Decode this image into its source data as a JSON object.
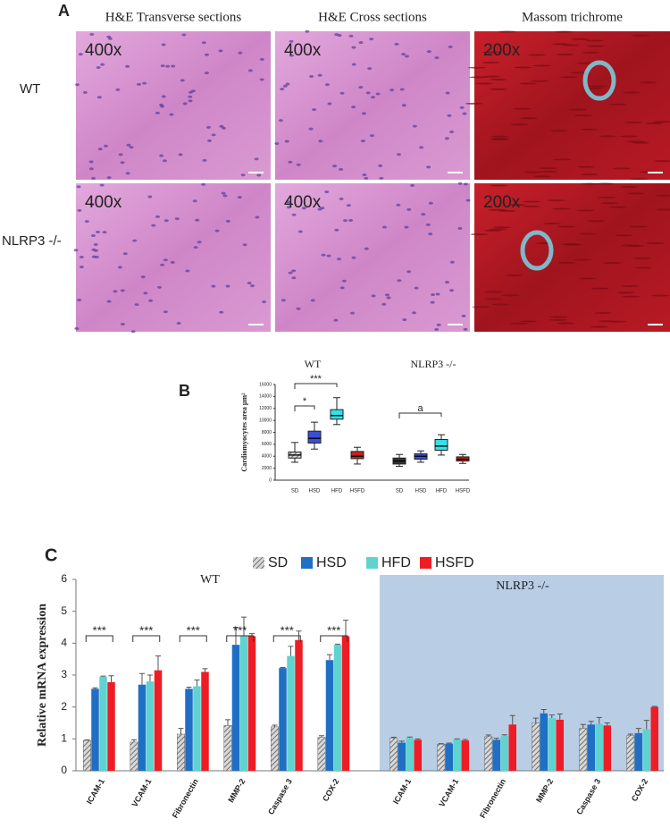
{
  "panel_a": {
    "label": "A",
    "columns": [
      "H&E Transverse sections",
      "H&E Cross sections",
      "Massom trichrome"
    ],
    "rows": [
      "WT",
      "NLRP3 -/-"
    ],
    "magnifications": [
      [
        "400x",
        "400x",
        "200x"
      ],
      [
        "400x",
        "400x",
        "200x"
      ]
    ]
  },
  "chart_data": [
    {
      "type": "box",
      "panel": "B",
      "groups": [
        "WT",
        "NLRP3 -/-"
      ],
      "y_label": "Cardiomyocytes area μm²",
      "categories": [
        "SD",
        "HSD",
        "HFD",
        "HSFD",
        "SD",
        "HSD",
        "HFD",
        "HSFD"
      ],
      "colors": [
        "#bbbbbb",
        "#3a4fd8",
        "#35e0e8",
        "#c8201e",
        "#333333",
        "#3a4fd8",
        "#35e0e8",
        "#c8201e"
      ],
      "boxes": [
        {
          "min": 3000,
          "q1": 3700,
          "median": 4200,
          "q3": 4700,
          "max": 6300
        },
        {
          "min": 5200,
          "q1": 6200,
          "median": 7000,
          "q3": 8200,
          "max": 9700
        },
        {
          "min": 9300,
          "q1": 10200,
          "median": 10800,
          "q3": 11800,
          "max": 13800
        },
        {
          "min": 2700,
          "q1": 3600,
          "median": 4000,
          "q3": 4800,
          "max": 5500
        },
        {
          "min": 2300,
          "q1": 2700,
          "median": 3200,
          "q3": 3700,
          "max": 4300
        },
        {
          "min": 3000,
          "q1": 3500,
          "median": 4000,
          "q3": 4400,
          "max": 4900
        },
        {
          "min": 4200,
          "q1": 5000,
          "median": 5700,
          "q3": 6800,
          "max": 7600
        },
        {
          "min": 2800,
          "q1": 3200,
          "median": 3500,
          "q3": 3900,
          "max": 4300
        }
      ],
      "annotations": [
        "*",
        "***",
        "a"
      ],
      "ylim": [
        0,
        16000
      ],
      "yticks": [
        0,
        2000,
        4000,
        6000,
        8000,
        10000,
        12000,
        14000,
        16000
      ]
    },
    {
      "type": "bar",
      "panel": "C",
      "groups": [
        "WT",
        "NLRP3 -/-"
      ],
      "y_label": "Relative mRNA expression",
      "categories": [
        "ICAM-1",
        "VCAM-1",
        "Fibronectin",
        "MMP-2",
        "Caspase 3",
        "COX-2",
        "ICAM-1",
        "VCAM-1",
        "Fibronectin",
        "MMP-2",
        "Caspase 3",
        "COX-2"
      ],
      "series": [
        {
          "name": "SD",
          "color": "#8a8a8a",
          "hatch": true,
          "values": [
            0.95,
            0.9,
            1.15,
            1.42,
            1.38,
            1.05,
            1.02,
            0.83,
            1.07,
            1.5,
            1.33,
            1.1
          ],
          "errors": [
            0.02,
            0.07,
            0.18,
            0.18,
            0.05,
            0.05,
            0.03,
            0.02,
            0.05,
            0.15,
            0.12,
            0.05
          ]
        },
        {
          "name": "HSD",
          "color": "#1f6fc5",
          "values": [
            2.57,
            2.7,
            2.57,
            3.95,
            3.22,
            3.47,
            0.88,
            0.85,
            0.97,
            1.8,
            1.45,
            1.18
          ],
          "errors": [
            0.03,
            0.35,
            0.05,
            0.55,
            0.02,
            0.17,
            0.05,
            0.02,
            0.05,
            0.12,
            0.1,
            0.15
          ]
        },
        {
          "name": "HFD",
          "color": "#5fd3cf",
          "values": [
            2.95,
            2.8,
            2.65,
            4.22,
            3.6,
            3.95,
            1.03,
            0.98,
            1.1,
            1.65,
            1.47,
            1.3
          ],
          "errors": [
            0.02,
            0.2,
            0.2,
            0.6,
            0.3,
            0.02,
            0.03,
            0.02,
            0.03,
            0.1,
            0.2,
            0.28
          ]
        },
        {
          "name": "HSFD",
          "color": "#ee1c24",
          "values": [
            2.78,
            3.15,
            3.1,
            4.22,
            4.1,
            4.22,
            0.97,
            0.95,
            1.45,
            1.6,
            1.42,
            2.0
          ],
          "errors": [
            0.2,
            0.45,
            0.1,
            0.08,
            0.28,
            0.5,
            0.03,
            0.03,
            0.28,
            0.18,
            0.08,
            0.02
          ]
        }
      ],
      "significance": [
        "***",
        "***",
        "***",
        "***",
        "***",
        "***"
      ],
      "ylim": [
        0,
        6
      ],
      "yticks": [
        0,
        1,
        2,
        3,
        4,
        5,
        6
      ]
    }
  ]
}
